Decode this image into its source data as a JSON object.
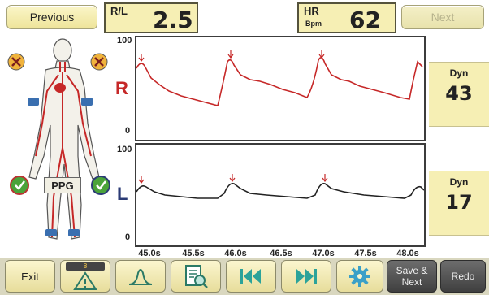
{
  "header": {
    "previous_label": "Previous",
    "next_label": "Next",
    "rl_label": "R/L",
    "rl_value": "2.5",
    "hr_label": "HR",
    "hr_unit": "Bpm",
    "hr_value": "62"
  },
  "figure": {
    "ppg_label": "PPG"
  },
  "channels": {
    "right": {
      "label": "R",
      "color": "#c62828",
      "y_top": "100",
      "y_bottom": "0",
      "dyn_label": "Dyn",
      "dyn_value": "43"
    },
    "left": {
      "label": "L",
      "color": "#2b3b75",
      "y_top": "100",
      "y_bottom": "0",
      "dyn_label": "Dyn",
      "dyn_value": "17"
    }
  },
  "x_ticks": [
    "45.0s",
    "45.5s",
    "46.0s",
    "46.5s",
    "47.0s",
    "47.5s",
    "48.0s"
  ],
  "toolbar": {
    "exit_label": "Exit",
    "warning_count": "8",
    "save_next_label": "Save & Next",
    "redo_label": "Redo"
  },
  "icons": {
    "warning": "warning-triangle-icon",
    "waveform": "pulse-waveform-icon",
    "report": "report-magnifier-icon",
    "rewind": "skip-back-icon",
    "forward": "skip-forward-icon",
    "settings": "gear-icon"
  }
}
